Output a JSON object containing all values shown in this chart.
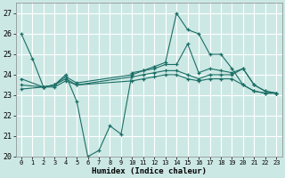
{
  "xlabel": "Humidex (Indice chaleur)",
  "xlim": [
    -0.5,
    23.5
  ],
  "ylim": [
    20,
    27.5
  ],
  "yticks": [
    20,
    21,
    22,
    23,
    24,
    25,
    26,
    27
  ],
  "xticks": [
    0,
    1,
    2,
    3,
    4,
    5,
    6,
    7,
    8,
    9,
    10,
    11,
    12,
    13,
    14,
    15,
    16,
    17,
    18,
    19,
    20,
    21,
    22,
    23
  ],
  "background_color": "#cce8e4",
  "grid_color": "#ffffff",
  "line_color": "#1a6e66",
  "curves": [
    {
      "x": [
        0,
        1,
        2,
        3,
        4,
        5,
        6,
        7,
        8,
        9,
        10,
        11,
        12,
        13,
        14,
        15,
        16,
        17,
        18,
        19,
        20,
        21,
        22,
        23
      ],
      "y": [
        26.0,
        24.8,
        23.4,
        23.5,
        24.0,
        22.7,
        20.0,
        20.3,
        21.5,
        21.1,
        24.1,
        24.2,
        24.4,
        24.6,
        27.0,
        26.2,
        26.0,
        25.0,
        25.0,
        24.3,
        23.5,
        23.2,
        23.1,
        23.1
      ]
    },
    {
      "x": [
        0,
        2,
        3,
        4,
        5,
        10,
        11,
        12,
        13,
        14,
        15,
        16,
        17,
        18,
        19,
        20,
        21,
        22,
        23
      ],
      "y": [
        23.8,
        23.4,
        23.5,
        23.9,
        23.6,
        24.0,
        24.2,
        24.3,
        24.5,
        24.5,
        25.5,
        24.1,
        24.3,
        24.2,
        24.1,
        24.3,
        23.5,
        23.2,
        23.1
      ]
    },
    {
      "x": [
        0,
        2,
        3,
        4,
        5,
        10,
        11,
        12,
        13,
        14,
        15,
        16,
        17,
        18,
        19,
        20,
        21,
        22,
        23
      ],
      "y": [
        23.5,
        23.4,
        23.5,
        23.8,
        23.5,
        23.9,
        24.0,
        24.1,
        24.2,
        24.2,
        24.0,
        23.8,
        24.0,
        24.0,
        24.0,
        24.3,
        23.5,
        23.2,
        23.1
      ]
    },
    {
      "x": [
        0,
        2,
        3,
        4,
        5,
        10,
        11,
        12,
        13,
        14,
        15,
        16,
        17,
        18,
        19,
        20,
        21,
        22,
        23
      ],
      "y": [
        23.3,
        23.4,
        23.4,
        23.7,
        23.5,
        23.7,
        23.8,
        23.9,
        24.0,
        24.0,
        23.8,
        23.7,
        23.8,
        23.8,
        23.8,
        23.5,
        23.2,
        23.1,
        23.1
      ]
    }
  ]
}
